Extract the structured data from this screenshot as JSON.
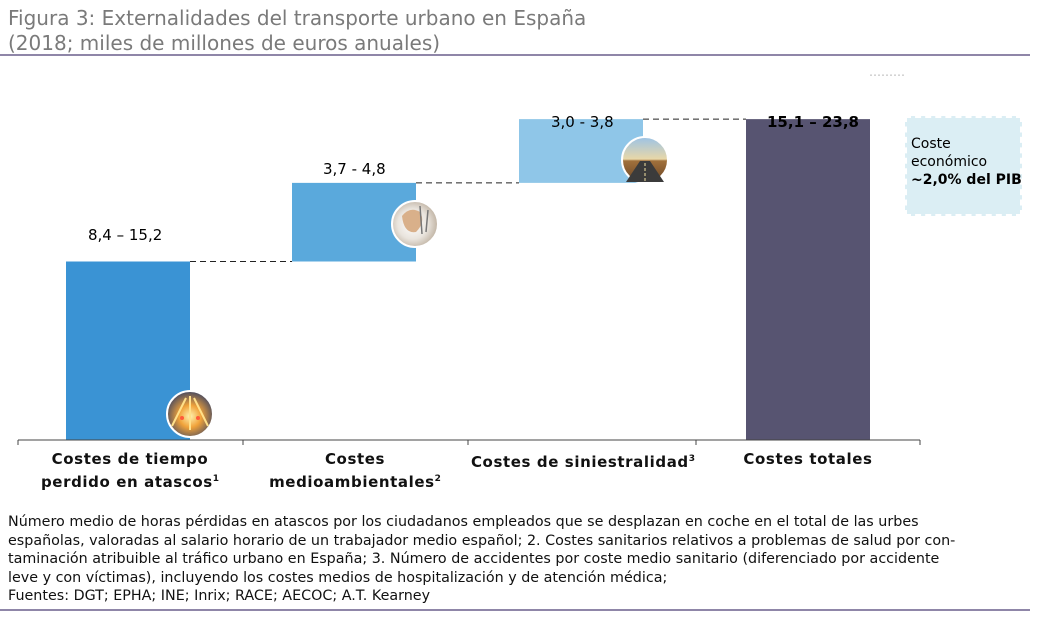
{
  "figure": {
    "title_line1": "Figura 3: Externalidades del transporte urbano en España",
    "title_line2": "(2018; miles de millones de euros anuales)"
  },
  "chart_data": {
    "type": "bar",
    "subtype": "waterfall",
    "categories": [
      "Costes de tiempo perdido en atascos",
      "Costes medioambientales",
      "Costes de siniestralidad",
      "Costes totales"
    ],
    "category_label_lines": [
      {
        "line1": "Costes de tiempo",
        "line2": "perdido en atascos",
        "sup": "1"
      },
      {
        "line1": "Costes",
        "line2": "medioambientales",
        "sup": "2"
      },
      {
        "line1": "Costes de siniestralidad",
        "line2": "",
        "sup": "3"
      },
      {
        "line1": "Costes totales",
        "line2": "",
        "sup": ""
      }
    ],
    "ranges": [
      [
        8.4,
        15.2
      ],
      [
        3.7,
        4.8
      ],
      [
        3.0,
        3.8
      ],
      [
        15.1,
        23.8
      ]
    ],
    "bar_start": [
      0,
      8.4,
      12.1,
      0
    ],
    "bar_end": [
      8.4,
      12.1,
      15.1,
      15.1
    ],
    "value_labels": [
      "8,4 – 15,2",
      "3,7 - 4,8",
      "3,0 - 3,8",
      "15,1 – 23,8"
    ],
    "colors": [
      "#3a93d4",
      "#5aa9dc",
      "#8fc6e8",
      "#575471"
    ],
    "icons": [
      "traffic-jam-icon",
      "medical-care-icon",
      "road-icon"
    ],
    "grid": false,
    "ylim": [
      0,
      16
    ]
  },
  "callout": {
    "line1": "Coste",
    "line2": "económico",
    "line3": "~2,0% del PIB"
  },
  "footnote": {
    "line1": "Número medio de horas pérdidas en atascos por los ciudadanos empleados que se desplazan en coche en el total de las urbes",
    "line2": "españolas, valoradas al salario horario de un trabajador medio español; 2. Costes sanitarios relativos a problemas de salud por con-",
    "line3": "taminación atribuible al tráfico urbano en España; 3. Número de accidentes por coste medio sanitario (diferenciado por accidente",
    "line4": "leve y con víctimas), incluyendo los costes medios de hospitalización y de atención médica;",
    "line5": "Fuentes: DGT; EPHA; INE; Inrix; RACE; AECOC; A.T. Kearney"
  }
}
